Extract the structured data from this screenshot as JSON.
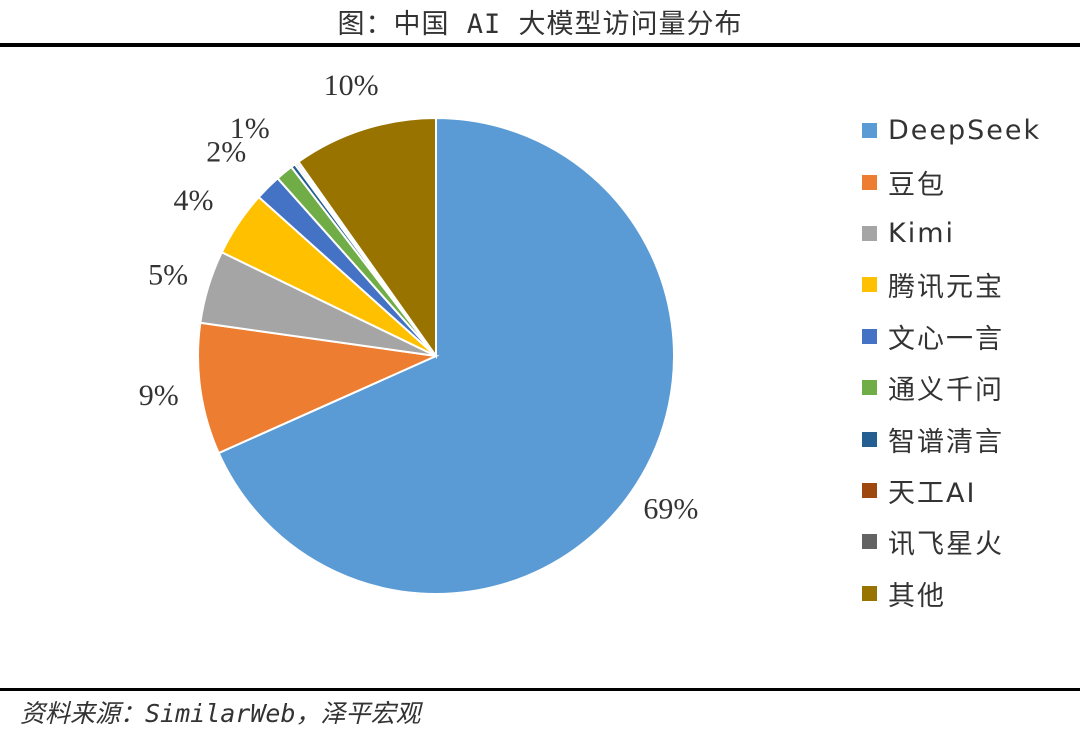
{
  "title": "图：中国 AI 大模型访问量分布",
  "source": "资料来源：SimilarWeb，泽平宏观",
  "chart_data": {
    "type": "pie",
    "title": "图：中国 AI 大模型访问量分布",
    "legend_position": "right",
    "slices": [
      {
        "name": "DeepSeek",
        "value": 69,
        "label": "69%",
        "color": "#5B9BD5"
      },
      {
        "name": "豆包",
        "value": 9,
        "label": "9%",
        "color": "#ED7D31"
      },
      {
        "name": "Kimi",
        "value": 5,
        "label": "5%",
        "color": "#A5A5A5"
      },
      {
        "name": "腾讯元宝",
        "value": 4.5,
        "label": "4%",
        "color": "#FFC000"
      },
      {
        "name": "文心一言",
        "value": 1.8,
        "label": "2%",
        "color": "#4472C4"
      },
      {
        "name": "通义千问",
        "value": 1.2,
        "label": "1%",
        "color": "#70AD47"
      },
      {
        "name": "智谱清言",
        "value": 0.3,
        "label": "",
        "color": "#255E91"
      },
      {
        "name": "天工AI",
        "value": 0.15,
        "label": "",
        "color": "#9E480E"
      },
      {
        "name": "讯飞星火",
        "value": 0.15,
        "label": "",
        "color": "#636363"
      },
      {
        "name": "其他",
        "value": 9.9,
        "label": "10%",
        "color": "#997300"
      }
    ]
  }
}
